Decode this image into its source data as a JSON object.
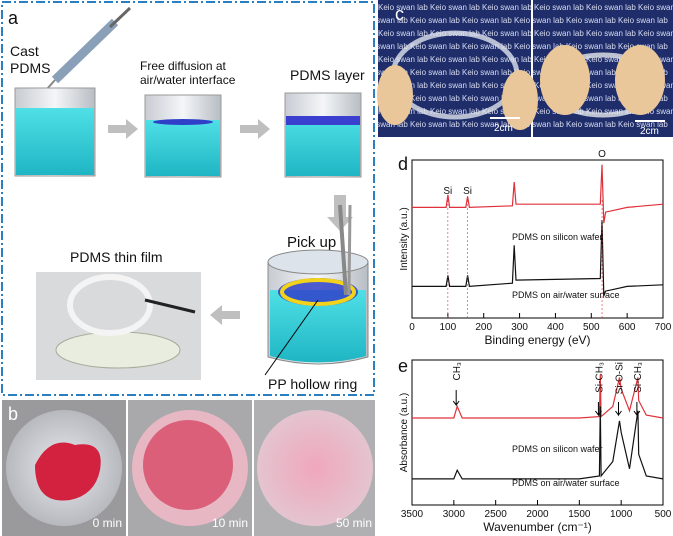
{
  "figure": {
    "panel_a": {
      "label": "a",
      "cast": [
        "Cast",
        "PDMS"
      ],
      "diffusion": [
        "Free diffusion at",
        "air/water interface"
      ],
      "layer": "PDMS layer",
      "pick_up": "Pick up",
      "thin_film": "PDMS thin film",
      "ring": "PP hollow ring"
    },
    "panel_b": {
      "label": "b",
      "times": [
        "0 min",
        "10 min",
        "50 min"
      ]
    },
    "panel_c": {
      "label": "c",
      "watermark": "Keio swan lab",
      "scale_bars": [
        "2cm",
        "2cm"
      ]
    }
  },
  "chart_data": [
    {
      "type": "line",
      "panel_label": "d",
      "xlabel": "Binding energy (eV)",
      "ylabel": "Intensity (a.u.)",
      "x": [
        0,
        95,
        100,
        105,
        150,
        155,
        160,
        280,
        285,
        290,
        525,
        530,
        535,
        540,
        560,
        600,
        700
      ],
      "xlim": [
        0,
        700
      ],
      "xticks": [
        0,
        100,
        200,
        300,
        400,
        500,
        600,
        700
      ],
      "ylim": [
        0,
        100
      ],
      "series": [
        {
          "name": "PDMS on silicon wafer",
          "color": "#e0303a",
          "values": [
            70,
            70,
            78,
            70,
            70,
            77,
            70,
            71,
            86,
            72,
            72,
            97,
            60,
            67,
            68,
            70,
            72
          ]
        },
        {
          "name": "PDMS on air/water surface",
          "color": "#111111",
          "values": [
            20,
            20,
            27,
            20,
            20,
            27,
            20,
            22,
            46,
            24,
            25,
            62,
            14,
            17,
            18,
            20,
            21
          ]
        }
      ],
      "annotations": [
        {
          "text": "Si",
          "x": 100
        },
        {
          "text": "Si",
          "x": 155
        },
        {
          "text": "O",
          "x": 530
        }
      ]
    },
    {
      "type": "line",
      "panel_label": "e",
      "xlabel": "Wavenumber (cm⁻¹)",
      "ylabel": "Absorbance (a.u.)",
      "x": [
        3500,
        3000,
        2960,
        2900,
        2000,
        1500,
        1260,
        1250,
        1240,
        1100,
        1020,
        1000,
        900,
        800,
        790,
        700,
        500
      ],
      "xlim": [
        3500,
        500
      ],
      "xticks": [
        3500,
        3000,
        2500,
        2000,
        1500,
        1000,
        500
      ],
      "ylim": [
        0,
        100
      ],
      "series": [
        {
          "name": "PDMS on silicon wafer",
          "color": "#e0303a",
          "values": [
            60,
            60,
            68,
            60,
            60,
            60,
            61,
            90,
            61,
            68,
            88,
            80,
            65,
            88,
            72,
            62,
            60
          ]
        },
        {
          "name": "PDMS on air/water surface",
          "color": "#111111",
          "values": [
            18,
            18,
            24,
            18,
            18,
            18,
            20,
            68,
            20,
            30,
            58,
            50,
            25,
            65,
            35,
            20,
            18
          ]
        }
      ],
      "annotations": [
        {
          "text": "CH₃",
          "x": 2960
        },
        {
          "text": "Si-CH₃",
          "x": 1260
        },
        {
          "text": "Si-O-Si",
          "x": 1020
        },
        {
          "text": "Si-CH₃",
          "x": 800
        }
      ]
    }
  ]
}
